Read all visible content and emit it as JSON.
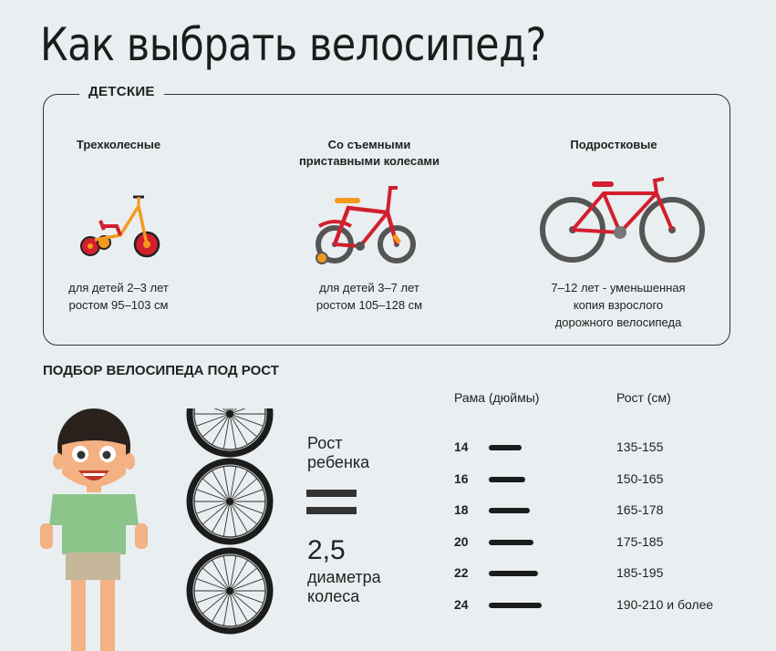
{
  "title": "Как выбрать велосипед?",
  "kids": {
    "label": "ДЕТСКИЕ",
    "columns": [
      {
        "title": "Трехколесные",
        "desc": [
          "для детей 2–3 лет",
          "ростом 95–103 см"
        ]
      },
      {
        "title": [
          "Со съемными",
          "приставными колесами"
        ],
        "desc": [
          "для детей 3–7 лет",
          "ростом 105–128 см"
        ]
      },
      {
        "title": "Подростковые",
        "desc": [
          "7–12 лет - уменьшенная",
          "копия взрослого",
          "дорожного велосипеда"
        ]
      }
    ]
  },
  "sizing": {
    "title": "ПОДБОР ВЕЛОСИПЕДА ПОД РОСТ",
    "formula": {
      "line1": "Рост",
      "line2": "ребенка",
      "number": "2,5",
      "line3": "диаметра",
      "line4": "колеса"
    },
    "table": {
      "frame_header": "Рама (дюймы)",
      "height_header": "Рост (см)",
      "rows": [
        {
          "frame": "14",
          "height": "135-155"
        },
        {
          "frame": "16",
          "height": "150-165"
        },
        {
          "frame": "18",
          "height": "165-178"
        },
        {
          "frame": "20",
          "height": "175-185"
        },
        {
          "frame": "22",
          "height": "185-195"
        },
        {
          "frame": "24",
          "height": "190-210 и более"
        }
      ]
    }
  },
  "colors": {
    "red": "#d21f2e",
    "orange": "#f39a1e",
    "dark": "#333333",
    "shirt": "#8cc58a",
    "shorts": "#c7b79a",
    "skin": "#f4b183"
  },
  "icons": [
    "tricycle-icon",
    "training-wheels-bike-icon",
    "teen-bike-icon",
    "boy-icon",
    "wheel-icon"
  ]
}
